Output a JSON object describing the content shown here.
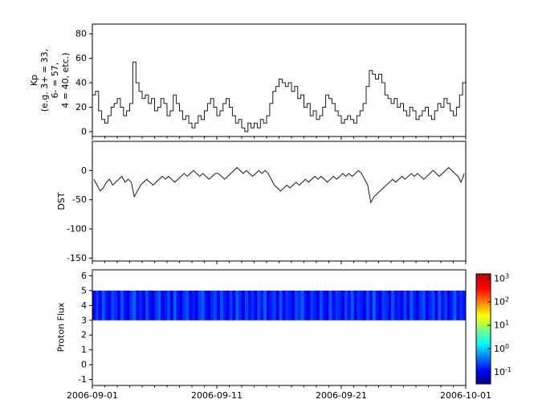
{
  "figure": {
    "background": "#ffffff",
    "line_color": "#1a1a1a",
    "axis_color": "#000000"
  },
  "x_axis": {
    "ticklabels": [
      "2006-09-01",
      "2006-09-11",
      "2006-09-21",
      "2006-10-01"
    ],
    "range_days": 30,
    "major_tick_days": [
      0,
      10,
      20,
      30
    ],
    "minor_tick_interval_days": 1
  },
  "chart_data": [
    {
      "type": "line",
      "style": "step",
      "name": "kp-index",
      "ylabel_lines": [
        "Kp",
        "(e.g. 3+ = 33,",
        "6- = 57,",
        "4 = 40, etc.)"
      ],
      "ylim": [
        -4,
        88
      ],
      "yticks": [
        0,
        20,
        40,
        60,
        80
      ],
      "line_color": "#1a1a1a",
      "x_start": "2006-09-01",
      "x_end": "2006-10-01",
      "sample_interval_hours": 6,
      "values": [
        30,
        33,
        17,
        10,
        7,
        13,
        20,
        23,
        27,
        20,
        13,
        17,
        23,
        57,
        40,
        33,
        27,
        30,
        23,
        27,
        17,
        20,
        27,
        23,
        13,
        17,
        30,
        23,
        17,
        10,
        13,
        7,
        3,
        7,
        13,
        10,
        17,
        23,
        27,
        20,
        13,
        17,
        23,
        27,
        20,
        13,
        7,
        10,
        3,
        0,
        7,
        3,
        7,
        3,
        10,
        7,
        13,
        23,
        33,
        37,
        43,
        40,
        37,
        40,
        33,
        37,
        27,
        30,
        20,
        23,
        13,
        17,
        10,
        13,
        20,
        30,
        27,
        23,
        17,
        13,
        7,
        10,
        13,
        10,
        7,
        13,
        17,
        23,
        37,
        50,
        47,
        43,
        47,
        40,
        30,
        27,
        23,
        27,
        20,
        23,
        17,
        13,
        20,
        17,
        10,
        13,
        17,
        20,
        13,
        10,
        17,
        23,
        20,
        27,
        23,
        17,
        13,
        20,
        30,
        40
      ]
    },
    {
      "type": "line",
      "style": "line",
      "name": "dst-index",
      "ylabel": "DST",
      "ylim": [
        -155,
        50
      ],
      "yticks": [
        0,
        -50,
        -100,
        -150
      ],
      "line_color": "#1a1a1a",
      "x_start": "2006-09-01",
      "x_end": "2006-10-01",
      "sample_interval_hours": 6,
      "values": [
        -15,
        -25,
        -35,
        -30,
        -20,
        -15,
        -25,
        -20,
        -15,
        -10,
        -20,
        -15,
        -20,
        -45,
        -35,
        -25,
        -20,
        -15,
        -20,
        -25,
        -20,
        -15,
        -10,
        -15,
        -10,
        -15,
        -20,
        -15,
        -10,
        -5,
        -10,
        -5,
        0,
        -5,
        -10,
        -5,
        -10,
        -15,
        -10,
        -5,
        -5,
        -10,
        -15,
        -10,
        -5,
        0,
        5,
        0,
        -5,
        0,
        -5,
        -10,
        -5,
        0,
        -5,
        0,
        -5,
        -15,
        -25,
        -30,
        -35,
        -30,
        -25,
        -30,
        -25,
        -20,
        -25,
        -20,
        -15,
        -20,
        -15,
        -10,
        -15,
        -10,
        -15,
        -20,
        -15,
        -10,
        -15,
        -10,
        -5,
        -10,
        -5,
        -10,
        -5,
        0,
        -5,
        -15,
        -25,
        -55,
        -45,
        -40,
        -35,
        -30,
        -25,
        -20,
        -15,
        -20,
        -15,
        -10,
        -15,
        -10,
        -5,
        -10,
        -5,
        -10,
        -15,
        -10,
        -5,
        0,
        -5,
        -10,
        -5,
        0,
        5,
        0,
        -5,
        -10,
        -20,
        -5
      ]
    },
    {
      "type": "heatmap",
      "name": "proton-flux",
      "ylabel": "Proton Flux",
      "ylim": [
        -1.4,
        6.4
      ],
      "yticks": [
        -1,
        0,
        1,
        2,
        3,
        4,
        5,
        6
      ],
      "band_y": [
        3,
        5
      ],
      "x_start": "2006-09-01",
      "x_end": "2006-10-01",
      "sample_interval_hours": 6,
      "values": [
        0.12,
        0.22,
        0.1,
        0.3,
        0.15,
        0.09,
        0.25,
        0.18,
        0.11,
        0.28,
        0.14,
        0.09,
        0.21,
        0.33,
        0.12,
        0.17,
        0.1,
        0.26,
        0.13,
        0.08,
        0.19,
        0.29,
        0.11,
        0.15,
        0.24,
        0.1,
        0.32,
        0.14,
        0.09,
        0.2,
        0.27,
        0.12,
        0.16,
        0.1,
        0.23,
        0.31,
        0.13,
        0.09,
        0.18,
        0.25,
        0.11,
        0.28,
        0.15,
        0.1,
        0.22,
        0.12,
        0.3,
        0.17,
        0.09,
        0.24,
        0.13,
        0.19,
        0.1,
        0.26,
        0.14,
        0.32,
        0.11,
        0.16,
        0.23,
        0.09,
        0.28,
        0.12,
        0.2,
        0.15,
        0.1,
        0.25,
        0.18,
        0.31,
        0.13,
        0.09,
        0.22,
        0.16,
        0.11,
        0.27,
        0.14,
        0.1,
        0.29,
        0.12,
        0.21,
        0.17,
        0.09,
        0.24,
        0.13,
        0.3,
        0.11,
        0.19,
        0.15,
        0.1,
        0.26,
        0.12,
        0.33,
        0.14,
        0.09,
        0.23,
        0.18,
        0.11,
        0.28,
        0.13,
        0.16,
        0.1,
        0.25,
        0.12,
        0.31,
        0.15,
        0.09,
        0.2,
        0.27,
        0.11,
        0.17,
        0.24,
        0.1,
        0.29,
        0.13,
        0.22,
        0.09,
        0.16,
        0.32,
        0.12,
        0.19,
        0.14
      ],
      "colorbar": {
        "scale": "log",
        "ticks": [
          "10^3",
          "10^2",
          "10^1",
          "10^0",
          "10^-1"
        ],
        "range_exp": [
          -1.5,
          3.2
        ],
        "stops": [
          {
            "p": 0.0,
            "c": "#000080"
          },
          {
            "p": 0.12,
            "c": "#0000ff"
          },
          {
            "p": 0.37,
            "c": "#00ffff"
          },
          {
            "p": 0.62,
            "c": "#ffff00"
          },
          {
            "p": 0.87,
            "c": "#ff0000"
          },
          {
            "p": 1.0,
            "c": "#bf0000"
          }
        ]
      }
    }
  ]
}
